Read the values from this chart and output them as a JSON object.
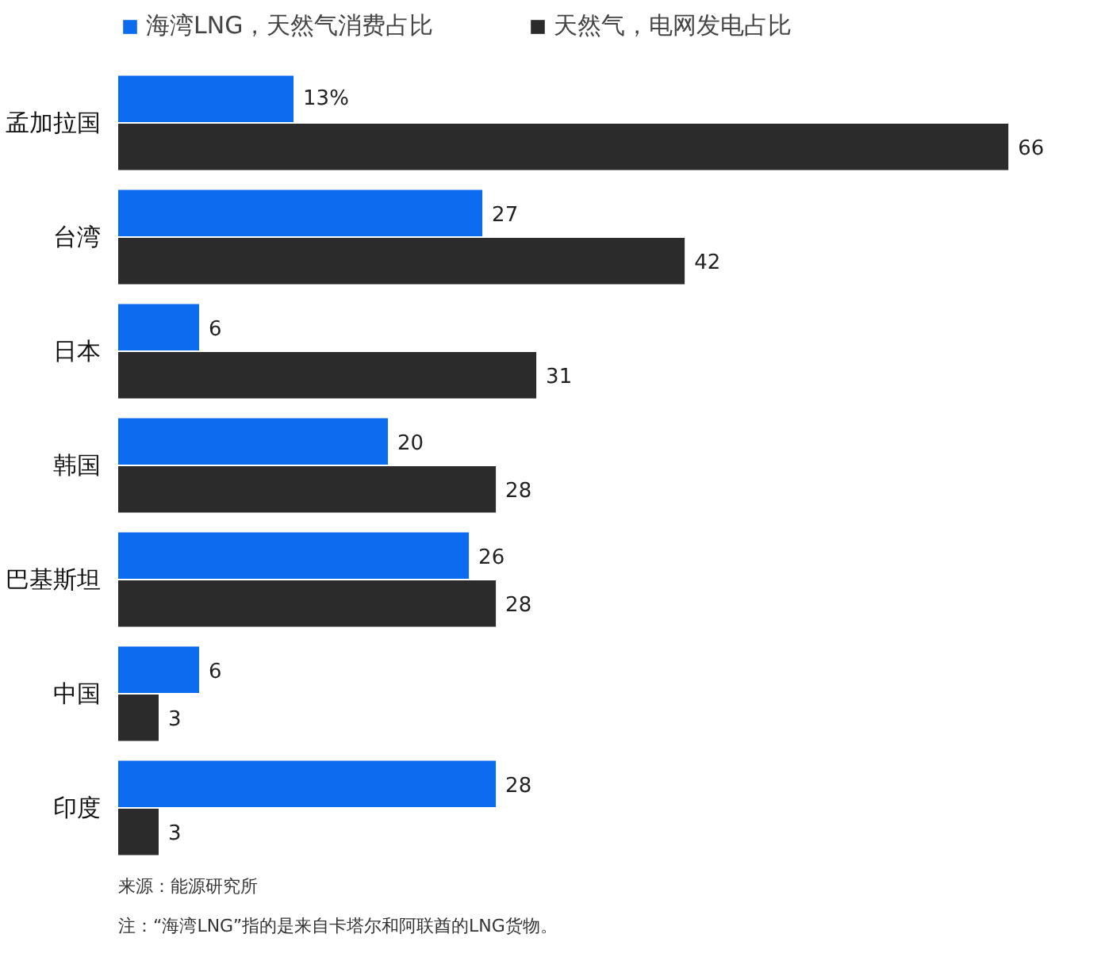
{
  "chart_data": {
    "type": "bar",
    "orientation": "horizontal",
    "categories": [
      "孟加拉国",
      "台湾",
      "日本",
      "韩国",
      "巴基斯坦",
      "中国",
      "印度"
    ],
    "series": [
      {
        "name": "海湾LNG，天然气消费占比",
        "color": "#0b6cf0",
        "values": [
          13,
          27,
          6,
          20,
          26,
          6,
          28
        ],
        "value_labels": [
          "13%",
          "27",
          "6",
          "20",
          "26",
          "6",
          "28"
        ]
      },
      {
        "name": "天然气，电网发电占比",
        "color": "#2b2b2b",
        "values": [
          66,
          42,
          31,
          28,
          28,
          3,
          3
        ]
      }
    ],
    "data_labels": true,
    "legend": "top left",
    "grid": false,
    "annotations": [
      "来源：能源研究所",
      "注：“海湾LNG”指的是来自卡塔尔和阿联酋的LNG货物。"
    ]
  }
}
